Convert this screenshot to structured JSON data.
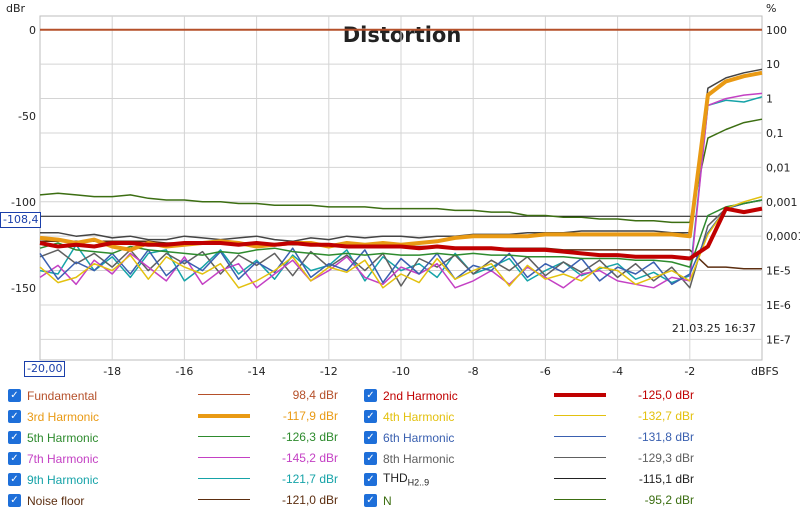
{
  "chart_data": {
    "type": "line",
    "title": "Distortion",
    "left_unit": "dBr",
    "right_unit": "%",
    "x_unit": "dBFS",
    "xlim": [
      -20,
      0
    ],
    "ylim": [
      -192,
      8
    ],
    "x_ticks": [
      -18,
      -16,
      -14,
      -12,
      -10,
      -8,
      -6,
      -4,
      -2
    ],
    "y_ticks_left": [
      0,
      -50,
      -100,
      -150
    ],
    "y_ticks_right": [
      {
        "label": "100",
        "db": 0
      },
      {
        "label": "10",
        "db": -20
      },
      {
        "label": "1",
        "db": -40
      },
      {
        "label": "0,1",
        "db": -60
      },
      {
        "label": "0,01",
        "db": -80
      },
      {
        "label": "0,001",
        "db": -100
      },
      {
        "label": "0,0001",
        "db": -120
      },
      {
        "label": "1E-5",
        "db": -140
      },
      {
        "label": "1E-6",
        "db": -160
      },
      {
        "label": "1E-7",
        "db": -180
      }
    ],
    "x_marker_label": "-20,00",
    "y_marker": {
      "value": -108.4,
      "label": "-108,4"
    },
    "timestamp": "21.03.25 16:37",
    "x": [
      -20,
      -19.5,
      -19,
      -18.5,
      -18,
      -17.5,
      -17,
      -16.5,
      -16,
      -15.5,
      -15,
      -14.5,
      -14,
      -13.5,
      -13,
      -12.5,
      -12,
      -11.5,
      -11,
      -10.5,
      -10,
      -9.5,
      -9,
      -8.5,
      -8,
      -7.5,
      -7,
      -6.5,
      -6,
      -5.5,
      -5,
      -4.5,
      -4,
      -3.5,
      -3,
      -2.5,
      -2,
      -1.5,
      -1,
      -0.5,
      0
    ],
    "series": [
      {
        "name": "Fundamental",
        "value": "98,4 dBr",
        "color": "#b5502a",
        "width": 2,
        "values": [
          0,
          0,
          0,
          0,
          0,
          0,
          0,
          0,
          0,
          0,
          0,
          0,
          0,
          0,
          0,
          0,
          0,
          0,
          0,
          0,
          0,
          0,
          0,
          0,
          0,
          0,
          0,
          0,
          0,
          0,
          0,
          0,
          0,
          0,
          0,
          0,
          0,
          0,
          0,
          0,
          0
        ]
      },
      {
        "name": "Noise floor",
        "value": "-121,0 dBr",
        "color": "#5c2e10",
        "width": 1.5,
        "values": [
          -123,
          -123,
          -123,
          -123,
          -123,
          -123,
          -123,
          -124,
          -124,
          -124,
          -124,
          -124,
          -124,
          -125,
          -125,
          -125,
          -125,
          -125,
          -126,
          -126,
          -126,
          -126,
          -126,
          -127,
          -127,
          -127,
          -127,
          -127,
          -127,
          -128,
          -128,
          -128,
          -128,
          -128,
          -128,
          -128,
          -128,
          -138,
          -138,
          -139,
          -139
        ]
      },
      {
        "name": "N",
        "value": "-95,2 dBr",
        "color": "#3c6e12",
        "width": 1.5,
        "values": [
          -96,
          -95,
          -96,
          -97,
          -97,
          -96,
          -98,
          -99,
          -99,
          -100,
          -100,
          -101,
          -101,
          -102,
          -102,
          -102,
          -103,
          -103,
          -103,
          -104,
          -104,
          -104,
          -104,
          -105,
          -105,
          -106,
          -106,
          -108,
          -108,
          -109,
          -109,
          -110,
          -110,
          -111,
          -111,
          -112,
          -112,
          -63,
          -58,
          -54,
          -52
        ]
      },
      {
        "name": "THD H2..9",
        "value": "-115,1 dBr",
        "color": "#444444",
        "width": 1.5,
        "values": [
          -118,
          -118,
          -120,
          -119,
          -121,
          -120,
          -122,
          -122,
          -120,
          -121,
          -122,
          -121,
          -120,
          -122,
          -123,
          -121,
          -122,
          -120,
          -121,
          -120,
          -120,
          -121,
          -120,
          -120,
          -119,
          -119,
          -119,
          -118,
          -118,
          -118,
          -117,
          -117,
          -117,
          -117,
          -117,
          -118,
          -118,
          -34,
          -28,
          -25,
          -23
        ]
      },
      {
        "name": "2nd Harmonic",
        "value": "-125,0 dBr",
        "color": "#c00000",
        "width": 4,
        "values": [
          -124,
          -126,
          -125,
          -126,
          -124,
          -124,
          -125,
          -125,
          -124,
          -124,
          -124,
          -125,
          -124,
          -125,
          -124,
          -125,
          -125,
          -126,
          -126,
          -126,
          -126,
          -127,
          -126,
          -127,
          -127,
          -127,
          -128,
          -128,
          -128,
          -129,
          -130,
          -131,
          -131,
          -132,
          -132,
          -132,
          -133,
          -126,
          -104,
          -106,
          -104
        ]
      },
      {
        "name": "3rd Harmonic",
        "value": "-117,9 dBr",
        "color": "#e99a14",
        "width": 4,
        "values": [
          -121,
          -122,
          -124,
          -122,
          -126,
          -128,
          -124,
          -126,
          -125,
          -124,
          -123,
          -124,
          -126,
          -125,
          -124,
          -124,
          -126,
          -124,
          -125,
          -124,
          -125,
          -124,
          -123,
          -121,
          -120,
          -120,
          -120,
          -120,
          -119,
          -119,
          -119,
          -119,
          -119,
          -119,
          -119,
          -119,
          -120,
          -38,
          -30,
          -27,
          -25
        ]
      },
      {
        "name": "4th Harmonic",
        "value": "-132,7 dBr",
        "color": "#e3c10f",
        "width": 1.5,
        "values": [
          -138,
          -147,
          -144,
          -136,
          -140,
          -131,
          -145,
          -132,
          -138,
          -142,
          -136,
          -150,
          -146,
          -140,
          -132,
          -146,
          -138,
          -141,
          -134,
          -150,
          -142,
          -147,
          -133,
          -145,
          -140,
          -136,
          -149,
          -137,
          -145,
          -142,
          -146,
          -138,
          -140,
          -148,
          -144,
          -140,
          -146,
          -119,
          -104,
          -100,
          -97
        ]
      },
      {
        "name": "5th Harmonic",
        "value": "-126,3 dBr",
        "color": "#2e8b2e",
        "width": 1.5,
        "values": [
          -127,
          -124,
          -128,
          -129,
          -130,
          -126,
          -128,
          -129,
          -130,
          -131,
          -129,
          -130,
          -128,
          -127,
          -129,
          -130,
          -131,
          -130,
          -131,
          -130,
          -131,
          -131,
          -130,
          -131,
          -130,
          -131,
          -131,
          -132,
          -132,
          -132,
          -133,
          -133,
          -133,
          -134,
          -134,
          -135,
          -138,
          -108,
          -103,
          -101,
          -99
        ]
      },
      {
        "name": "6th Harmonic",
        "value": "-131,8 dBr",
        "color": "#3a60b0",
        "width": 1.5,
        "values": [
          -130,
          -145,
          -135,
          -140,
          -130,
          -142,
          -128,
          -143,
          -134,
          -140,
          -129,
          -145,
          -135,
          -141,
          -127,
          -144,
          -136,
          -140,
          -128,
          -147,
          -133,
          -142,
          -130,
          -145,
          -137,
          -140,
          -130,
          -144,
          -136,
          -141,
          -133,
          -146,
          -138,
          -142,
          -135,
          -148,
          -142,
          -118,
          -104,
          -101,
          -99
        ]
      },
      {
        "name": "7th Harmonic",
        "value": "-145,2 dBr",
        "color": "#c441c4",
        "width": 1.5,
        "values": [
          -144,
          -137,
          -148,
          -134,
          -142,
          -130,
          -138,
          -146,
          -132,
          -148,
          -140,
          -136,
          -150,
          -142,
          -134,
          -146,
          -140,
          -132,
          -144,
          -148,
          -138,
          -142,
          -136,
          -150,
          -146,
          -140,
          -148,
          -138,
          -144,
          -150,
          -142,
          -140,
          -146,
          -148,
          -150,
          -144,
          -146,
          -44,
          -40,
          -38,
          -37
        ]
      },
      {
        "name": "8th Harmonic",
        "value": "-129,3 dBr",
        "color": "#606060",
        "width": 1.5,
        "values": [
          -132,
          -128,
          -136,
          -130,
          -138,
          -128,
          -140,
          -130,
          -136,
          -129,
          -142,
          -131,
          -137,
          -130,
          -143,
          -129,
          -138,
          -131,
          -140,
          -130,
          -149,
          -133,
          -138,
          -131,
          -142,
          -134,
          -140,
          -132,
          -143,
          -135,
          -141,
          -134,
          -144,
          -136,
          -146,
          -138,
          -150,
          -114,
          -104,
          -101,
          -99
        ]
      },
      {
        "name": "9th Harmonic",
        "value": "-121,7 dBr",
        "color": "#16a3a8",
        "width": 1.5,
        "values": [
          -140,
          -142,
          -125,
          -140,
          -132,
          -144,
          -130,
          -128,
          -146,
          -138,
          -128,
          -142,
          -134,
          -145,
          -131,
          -140,
          -137,
          -128,
          -146,
          -132,
          -140,
          -136,
          -144,
          -130,
          -142,
          -138,
          -133,
          -146,
          -140,
          -135,
          -143,
          -139,
          -136,
          -145,
          -141,
          -147,
          -143,
          -44,
          -41,
          -42,
          -39
        ]
      }
    ]
  },
  "legend": [
    {
      "label": "Fundamental",
      "value": "98,4 dBr",
      "color": "#b5502a",
      "lw": 1.5,
      "tcolor": "#b5502a"
    },
    {
      "label": "2nd Harmonic",
      "value": "-125,0 dBr",
      "color": "#c00000",
      "lw": 4,
      "tcolor": "#c00000"
    },
    {
      "label": "3rd Harmonic",
      "value": "-117,9 dBr",
      "color": "#e99a14",
      "lw": 4,
      "tcolor": "#e99a14"
    },
    {
      "label": "4th Harmonic",
      "value": "-132,7 dBr",
      "color": "#e3c10f",
      "lw": 1.5,
      "tcolor": "#e3c10f"
    },
    {
      "label": "5th Harmonic",
      "value": "-126,3 dBr",
      "color": "#2e8b2e",
      "lw": 1.5,
      "tcolor": "#2e8b2e"
    },
    {
      "label": "6th Harmonic",
      "value": "-131,8 dBr",
      "color": "#3a60b0",
      "lw": 1.5,
      "tcolor": "#3a60b0"
    },
    {
      "label": "7th Harmonic",
      "value": "-145,2 dBr",
      "color": "#c441c4",
      "lw": 1.5,
      "tcolor": "#c441c4"
    },
    {
      "label": "8th Harmonic",
      "value": "-129,3 dBr",
      "color": "#606060",
      "lw": 1.5,
      "tcolor": "#606060"
    },
    {
      "label": "9th Harmonic",
      "value": "-121,7 dBr",
      "color": "#16a3a8",
      "lw": 1.5,
      "tcolor": "#16a3a8"
    },
    {
      "label": "THD",
      "sub": "H2..9",
      "value": "-115,1 dBr",
      "color": "#222222",
      "lw": 1.5,
      "tcolor": "#222222"
    },
    {
      "label": "Noise floor",
      "value": "-121,0 dBr",
      "color": "#5c2e10",
      "lw": 1.5,
      "tcolor": "#5c2e10"
    },
    {
      "label": "N",
      "value": "-95,2 dBr",
      "color": "#3c6e12",
      "lw": 1.5,
      "tcolor": "#3c6e12"
    }
  ]
}
